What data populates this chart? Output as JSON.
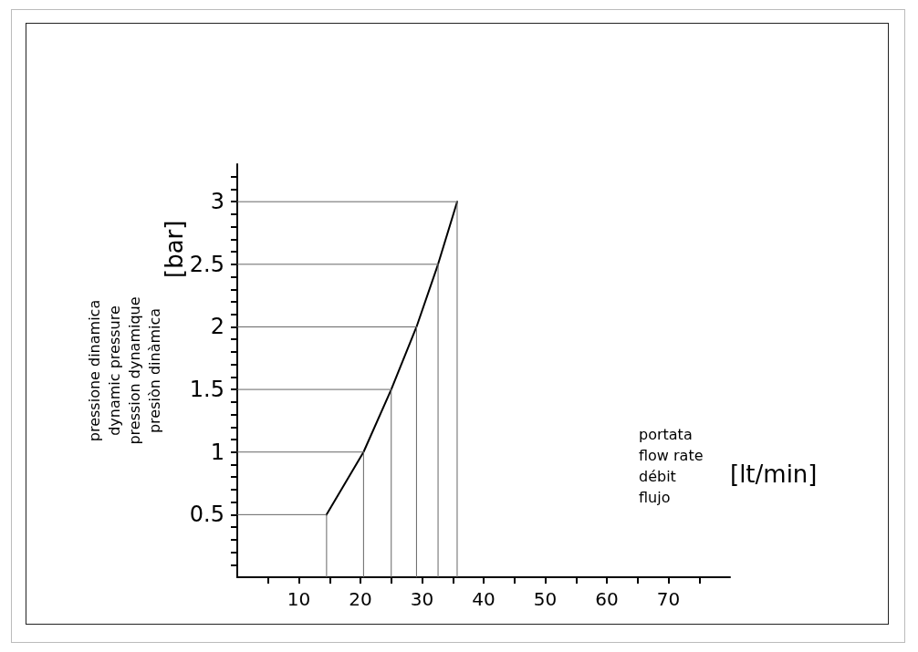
{
  "chart_data": {
    "type": "line",
    "xlabel": "portata\nflow rate\ndébit\nflujo",
    "ylabel": "pressione dinamica\ndynamic pressure\npression dynamique\npresiòn dinàmica",
    "annotations": [
      "[bar]",
      "[lt/min]"
    ],
    "x": [
      14.5,
      20.5,
      25.0,
      29.1,
      32.6,
      35.7
    ],
    "series": [
      {
        "color": "#000000",
        "values": [
          0.5,
          1,
          1.5,
          2,
          2.5,
          3
        ]
      },
      {
        "color": "#666666",
        "x": [
          0,
          14.5
        ],
        "values": [
          0.5,
          0.5
        ]
      },
      {
        "color": "#666666",
        "x": [
          0,
          20.5
        ],
        "values": [
          1,
          1
        ]
      },
      {
        "color": "#666666",
        "x": [
          0,
          25.0
        ],
        "values": [
          1.5,
          1.5
        ]
      },
      {
        "color": "#666666",
        "x": [
          0,
          29.1
        ],
        "values": [
          2,
          2
        ]
      },
      {
        "color": "#666666",
        "x": [
          0,
          32.6
        ],
        "values": [
          2.5,
          2.5
        ]
      },
      {
        "color": "#666666",
        "x": [
          0,
          35.7
        ],
        "values": [
          3,
          3
        ]
      },
      {
        "color": "#666666",
        "x": [
          14.5,
          14.5
        ],
        "values": [
          0,
          0.5
        ]
      },
      {
        "color": "#666666",
        "x": [
          20.5,
          20.5
        ],
        "values": [
          0,
          1
        ]
      },
      {
        "color": "#666666",
        "x": [
          25.0,
          25.0
        ],
        "values": [
          0,
          1.5
        ]
      },
      {
        "color": "#666666",
        "x": [
          29.1,
          29.1
        ],
        "values": [
          0,
          2
        ]
      },
      {
        "color": "#666666",
        "x": [
          32.6,
          32.6
        ],
        "values": [
          0,
          2.5
        ]
      },
      {
        "color": "#666666",
        "x": [
          35.7,
          35.7
        ],
        "values": [
          0,
          3
        ]
      }
    ],
    "xlim": [
      0,
      80
    ],
    "xticks": [
      {
        "value": 5,
        "label": null
      },
      10,
      {
        "value": 15,
        "label": null
      },
      20,
      {
        "value": 25,
        "label": null
      },
      30,
      {
        "value": 35,
        "label": null
      },
      40,
      {
        "value": 45,
        "label": null
      },
      50,
      {
        "value": 55,
        "label": null
      },
      60,
      {
        "value": 65,
        "label": null
      },
      70,
      {
        "value": 75,
        "label": null
      }
    ],
    "ylim": [
      0,
      3.3
    ],
    "yticks": [
      {
        "value": 0.1,
        "label": null
      },
      {
        "value": 0.2,
        "label": null
      },
      {
        "value": 0.3,
        "label": null
      },
      {
        "value": 0.4,
        "label": null
      },
      0.5,
      {
        "value": 0.6,
        "label": null
      },
      {
        "value": 0.7,
        "label": null
      },
      {
        "value": 0.8,
        "label": null
      },
      {
        "value": 0.9,
        "label": null
      },
      1,
      {
        "value": 1.1,
        "label": null
      },
      {
        "value": 1.2,
        "label": null
      },
      {
        "value": 1.3,
        "label": null
      },
      {
        "value": 1.4,
        "label": null
      },
      {
        "value": 1.5,
        "label": "1.5"
      },
      {
        "value": 1.6,
        "label": null
      },
      {
        "value": 1.7,
        "label": null
      },
      {
        "value": 1.8,
        "label": null
      },
      {
        "value": 1.9,
        "label": null
      },
      2,
      {
        "value": 2.1,
        "label": null
      },
      {
        "value": 2.2,
        "label": null
      },
      {
        "value": 2.3,
        "label": null
      },
      {
        "value": 2.4,
        "label": null
      },
      {
        "value": 2.5,
        "label": "2.5"
      },
      {
        "value": 2.6,
        "label": null
      },
      {
        "value": 2.7,
        "label": null
      },
      {
        "value": 2.8,
        "label": null
      },
      {
        "value": 2.9,
        "label": null
      },
      3,
      {
        "value": 3.1,
        "label": null
      },
      {
        "value": 3.2,
        "label": null
      }
    ],
    "grid": false
  }
}
